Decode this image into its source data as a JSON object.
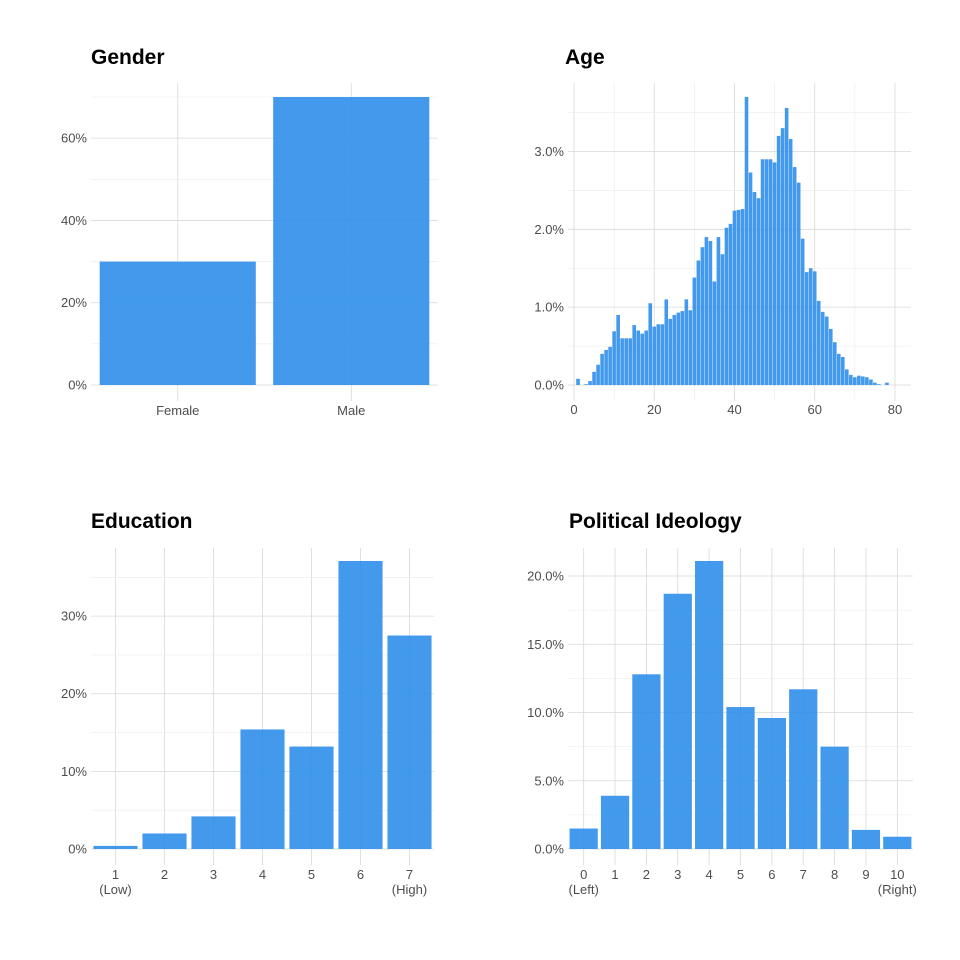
{
  "colors": {
    "bar": "#2f8fea",
    "grid_major": "#d9d9d9",
    "grid_minor": "#ebebeb"
  },
  "chart_data": [
    {
      "type": "bar",
      "title": "Gender",
      "categories": [
        "Female",
        "Male"
      ],
      "values": [
        30.0,
        70.0
      ],
      "ylim": [
        0,
        70
      ],
      "yticks": [
        0,
        20,
        40,
        60
      ],
      "ytick_labels": [
        "0%",
        "20%",
        "40%",
        "60%"
      ],
      "grid": true
    },
    {
      "type": "bar",
      "title": "Age",
      "x": [
        1,
        2,
        3,
        4,
        5,
        6,
        7,
        8,
        9,
        10,
        11,
        12,
        13,
        14,
        15,
        16,
        17,
        18,
        19,
        20,
        21,
        22,
        23,
        24,
        25,
        26,
        27,
        28,
        29,
        30,
        31,
        32,
        33,
        34,
        35,
        36,
        37,
        38,
        39,
        40,
        41,
        42,
        43,
        44,
        45,
        46,
        47,
        48,
        49,
        50,
        51,
        52,
        53,
        54,
        55,
        56,
        57,
        58,
        59,
        60,
        61,
        62,
        63,
        64,
        65,
        66,
        67,
        68,
        69,
        70,
        71,
        72,
        73,
        74,
        75,
        76,
        77,
        78,
        79,
        80,
        81
      ],
      "values": [
        0.08,
        0.0,
        0.01,
        0.05,
        0.17,
        0.26,
        0.4,
        0.45,
        0.49,
        0.69,
        0.9,
        0.6,
        0.6,
        0.6,
        0.77,
        0.7,
        0.66,
        0.7,
        1.05,
        0.75,
        0.78,
        0.78,
        1.1,
        0.85,
        0.9,
        0.93,
        0.95,
        1.1,
        0.96,
        1.38,
        1.6,
        1.77,
        1.9,
        1.85,
        1.33,
        1.9,
        1.68,
        2.02,
        2.07,
        2.24,
        2.25,
        2.26,
        3.7,
        2.73,
        2.48,
        2.4,
        2.9,
        2.9,
        2.9,
        2.86,
        3.2,
        3.3,
        3.56,
        3.16,
        2.8,
        2.6,
        1.88,
        1.45,
        1.5,
        1.46,
        1.08,
        0.94,
        0.88,
        0.72,
        0.55,
        0.4,
        0.36,
        0.2,
        0.13,
        0.1,
        0.12,
        0.11,
        0.1,
        0.07,
        0.03,
        0.01,
        0.0,
        0.03,
        0.0,
        0.0,
        0.0
      ],
      "xlim": [
        -1.5,
        84
      ],
      "xticks": [
        0,
        20,
        40,
        60,
        80
      ],
      "xtick_labels": [
        "0",
        "20",
        "40",
        "60",
        "80"
      ],
      "ylim": [
        0,
        3.7
      ],
      "yticks": [
        0,
        1,
        2,
        3
      ],
      "ytick_labels": [
        "0.0%",
        "1.0%",
        "2.0%",
        "3.0%"
      ],
      "grid": true
    },
    {
      "type": "bar",
      "title": "Education",
      "categories": [
        "1",
        "2",
        "3",
        "4",
        "5",
        "6",
        "7"
      ],
      "category_sublabels": [
        "(Low)",
        "",
        "",
        "",
        "",
        "",
        "(High)"
      ],
      "values": [
        0.4,
        2.0,
        4.2,
        15.4,
        13.2,
        37.1,
        27.5
      ],
      "ylim": [
        0,
        37.1
      ],
      "yticks": [
        0,
        10,
        20,
        30
      ],
      "ytick_labels": [
        "0%",
        "10%",
        "20%",
        "30%"
      ],
      "grid": true
    },
    {
      "type": "bar",
      "title": "Political Ideology",
      "categories": [
        "0",
        "1",
        "2",
        "3",
        "4",
        "5",
        "6",
        "7",
        "8",
        "9",
        "10"
      ],
      "category_sublabels": [
        "(Left)",
        "",
        "",
        "",
        "",
        "",
        "",
        "",
        "",
        "",
        "(Right)"
      ],
      "values": [
        1.5,
        3.9,
        12.8,
        18.7,
        21.1,
        10.4,
        9.6,
        11.7,
        7.5,
        1.4,
        0.9
      ],
      "ylim": [
        0,
        21.1
      ],
      "yticks": [
        0,
        5,
        10,
        15,
        20
      ],
      "ytick_labels": [
        "0.0%",
        "5.0%",
        "10.0%",
        "15.0%",
        "20.0%"
      ],
      "grid": true
    }
  ]
}
